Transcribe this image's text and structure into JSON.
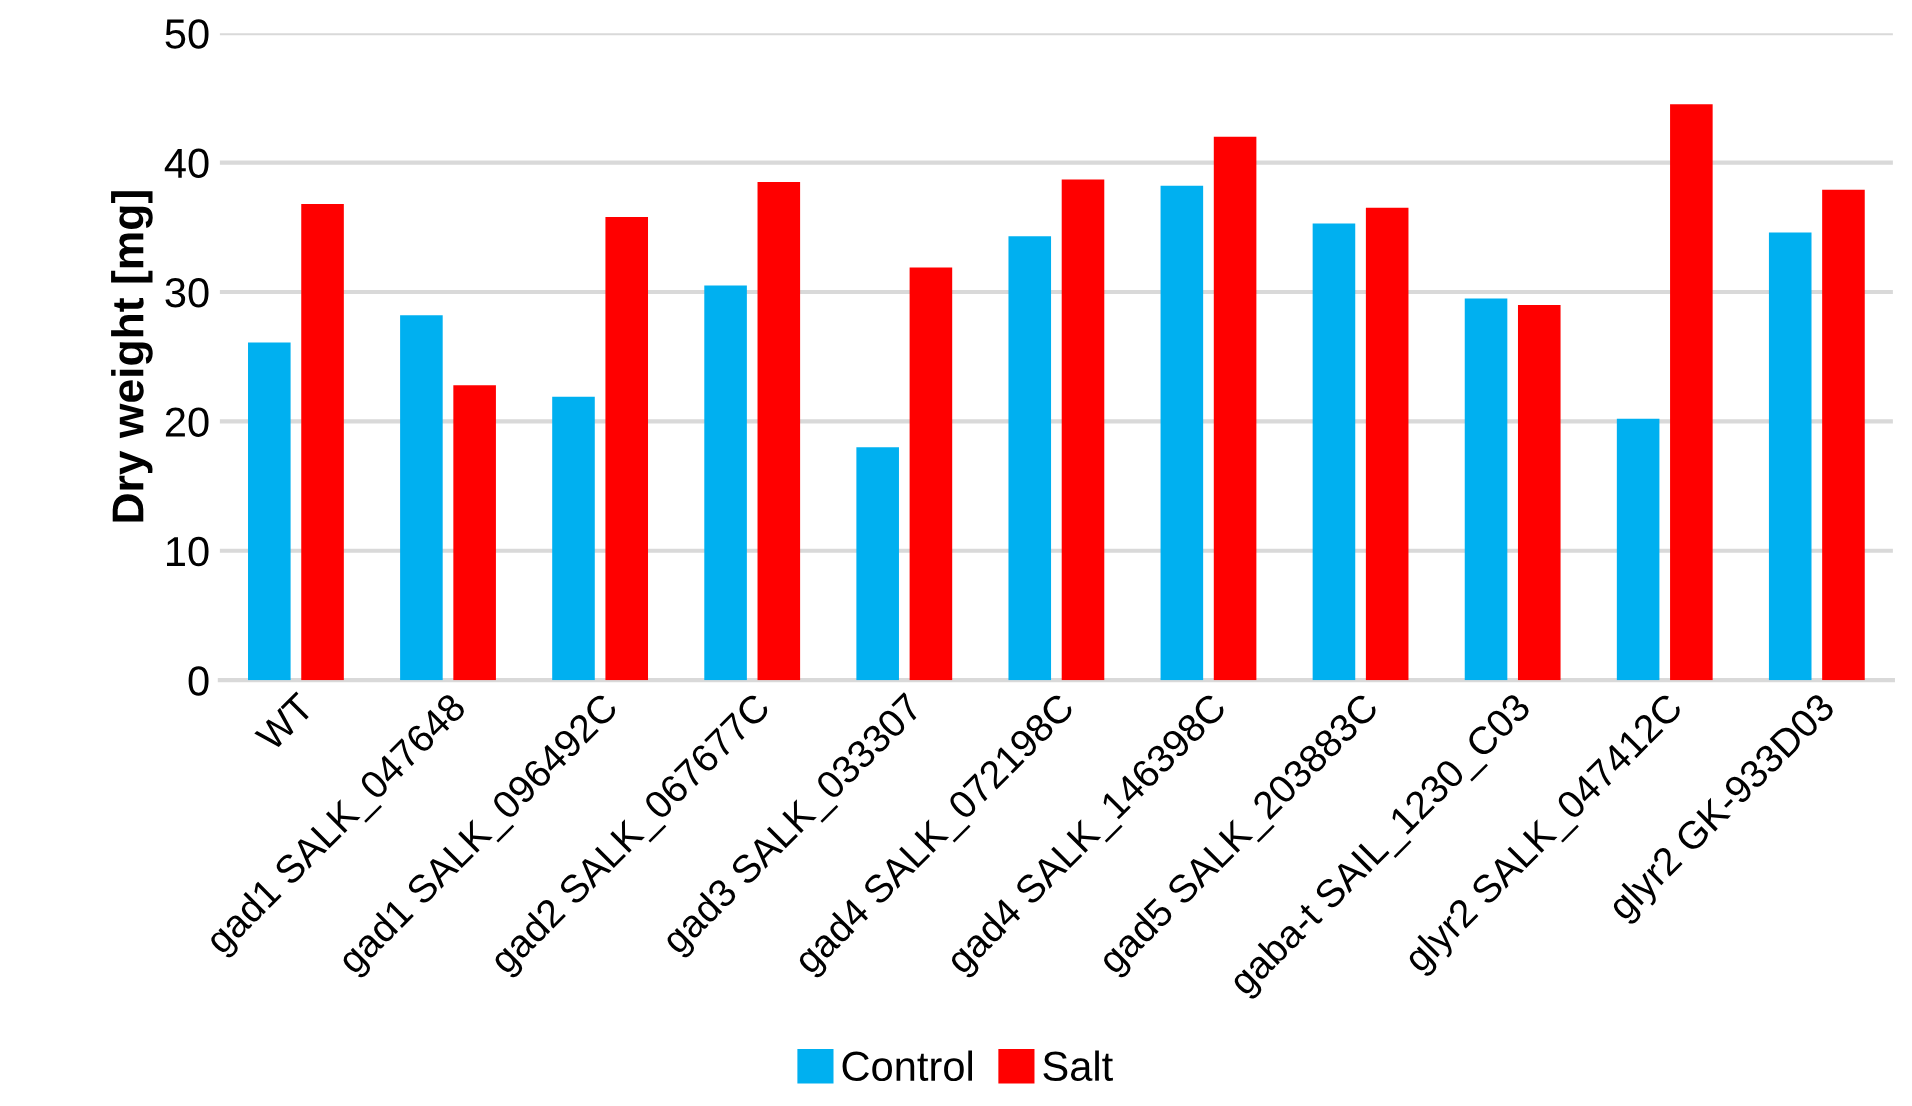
{
  "chart_data": {
    "type": "bar",
    "ylabel": "Dry weight [mg]",
    "categories": [
      "WT",
      "gad1 SALK_047648",
      "gad1 SALK_096492C",
      "gad2 SALK_067677C",
      "gad3 SALK_033307",
      "gad4 SALK_072198C",
      "gad4 SALK_146398C",
      "gad5 SALK_203883C",
      "gaba-t SAIL_1230_C03",
      "glyr2 SALK_047412C",
      "glyr2 GK-933D03"
    ],
    "series": [
      {
        "name": "Control",
        "color": "#00b0f0",
        "values": [
          26.1,
          28.2,
          21.9,
          30.5,
          18.0,
          34.3,
          38.2,
          35.3,
          29.5,
          20.2,
          34.6
        ]
      },
      {
        "name": "Salt",
        "color": "#ff0000",
        "values": [
          36.8,
          22.8,
          35.8,
          38.5,
          31.9,
          38.7,
          42.0,
          36.5,
          29.0,
          44.5,
          37.9
        ]
      }
    ],
    "ylim": [
      0,
      50
    ],
    "yticks": [
      0,
      10,
      20,
      30,
      40,
      50
    ],
    "grid": "y",
    "legend": "bottom"
  }
}
